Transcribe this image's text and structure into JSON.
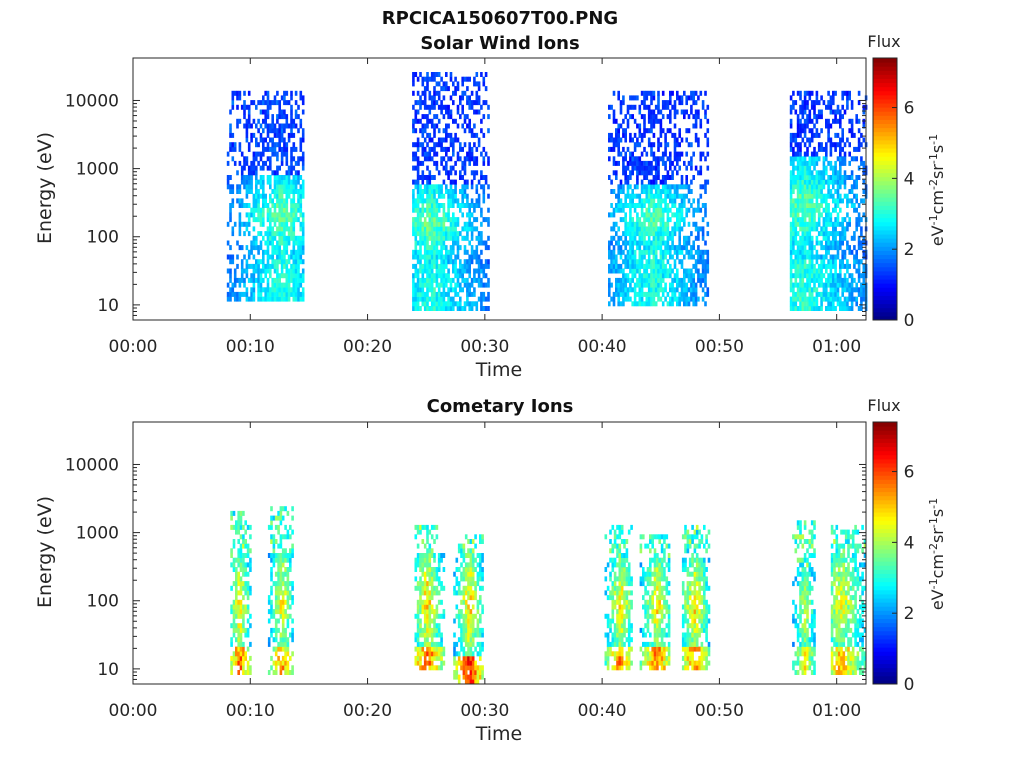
{
  "figure": {
    "title": "RPCICA150607T00.PNG"
  },
  "chart_data": [
    {
      "type": "heatmap",
      "title": "Solar Wind Ions",
      "xlabel": "Time",
      "ylabel": "Energy (eV)",
      "x_tick_labels": [
        "00:00",
        "00:10",
        "00:20",
        "00:30",
        "00:40",
        "00:50",
        "01:00"
      ],
      "x_range_minutes": [
        0,
        62.5
      ],
      "y_tick_labels": [
        "10",
        "100",
        "1000",
        "10000"
      ],
      "y_scale": "log",
      "y_range": [
        6,
        42000
      ],
      "colorbar": {
        "label": "Flux",
        "unit_label": "eV-1cm-2sr-1s-1",
        "tick_labels": [
          "0",
          "2",
          "4",
          "6"
        ],
        "range": [
          0,
          7.4
        ],
        "colormap": "jet"
      },
      "bursts": [
        {
          "t_start_min": 8.0,
          "t_end_min": 14.5,
          "peak_min": 12.6,
          "e_low": 12,
          "e_high": 14000,
          "core_low": 50,
          "core_high": 800,
          "core_flux": 3.6,
          "low_energy_flux": 3.0,
          "high_energy_flux": 1.4
        },
        {
          "t_start_min": 23.8,
          "t_end_min": 30.2,
          "peak_min": 25.3,
          "e_low": 8,
          "e_high": 28000,
          "core_low": 40,
          "core_high": 600,
          "core_flux": 3.6,
          "low_energy_flux": 3.0,
          "high_energy_flux": 1.3
        },
        {
          "t_start_min": 40.5,
          "t_end_min": 49.0,
          "peak_min": 44.2,
          "e_low": 9,
          "e_high": 13000,
          "core_low": 60,
          "core_high": 600,
          "core_flux": 3.5,
          "low_energy_flux": 3.0,
          "high_energy_flux": 1.3
        },
        {
          "t_start_min": 56.0,
          "t_end_min": 62.5,
          "peak_min": 57.0,
          "e_low": 8,
          "e_high": 15000,
          "core_low": 50,
          "core_high": 1500,
          "core_flux": 3.5,
          "low_energy_flux": 3.1,
          "high_energy_flux": 1.3
        }
      ]
    },
    {
      "type": "heatmap",
      "title": "Cometary Ions",
      "xlabel": "Time",
      "ylabel": "Energy (eV)",
      "x_tick_labels": [
        "00:00",
        "00:10",
        "00:20",
        "00:30",
        "00:40",
        "00:50",
        "01:00"
      ],
      "x_range_minutes": [
        0,
        62.5
      ],
      "y_tick_labels": [
        "10",
        "100",
        "1000",
        "10000"
      ],
      "y_scale": "log",
      "y_range": [
        6,
        42000
      ],
      "colorbar": {
        "label": "Flux",
        "unit_label": "eV-1cm-2sr-1s-1",
        "tick_labels": [
          "0",
          "2",
          "4",
          "6"
        ],
        "range": [
          0,
          7.4
        ],
        "colormap": "jet"
      },
      "bursts": [
        {
          "t_start_min": 8.3,
          "t_end_min": 10.0,
          "peak_min": 9.0,
          "e_low": 8,
          "e_high": 2000,
          "core_low": 20,
          "core_high": 400,
          "core_flux": 5.0,
          "low_energy_flux": 5.6,
          "high_energy_flux": 3.2
        },
        {
          "t_start_min": 11.5,
          "t_end_min": 13.5,
          "peak_min": 12.6,
          "e_low": 8,
          "e_high": 2500,
          "core_low": 20,
          "core_high": 500,
          "core_flux": 4.8,
          "low_energy_flux": 5.3,
          "high_energy_flux": 3.2
        },
        {
          "t_start_min": 24.0,
          "t_end_min": 26.5,
          "peak_min": 25.0,
          "e_low": 10,
          "e_high": 1200,
          "core_low": 20,
          "core_high": 500,
          "core_flux": 5.0,
          "low_energy_flux": 5.8,
          "high_energy_flux": 3.2
        },
        {
          "t_start_min": 27.3,
          "t_end_min": 29.8,
          "peak_min": 28.6,
          "e_low": 6,
          "e_high": 1000,
          "core_low": 15,
          "core_high": 500,
          "core_flux": 5.0,
          "low_energy_flux": 6.3,
          "high_energy_flux": 3.2
        },
        {
          "t_start_min": 40.2,
          "t_end_min": 42.5,
          "peak_min": 41.5,
          "e_low": 10,
          "e_high": 1200,
          "core_low": 20,
          "core_high": 400,
          "core_flux": 4.9,
          "low_energy_flux": 5.6,
          "high_energy_flux": 3.2
        },
        {
          "t_start_min": 43.2,
          "t_end_min": 45.8,
          "peak_min": 44.6,
          "e_low": 10,
          "e_high": 1000,
          "core_low": 20,
          "core_high": 400,
          "core_flux": 4.9,
          "low_energy_flux": 5.6,
          "high_energy_flux": 3.2
        },
        {
          "t_start_min": 46.8,
          "t_end_min": 49.2,
          "peak_min": 47.8,
          "e_low": 10,
          "e_high": 1200,
          "core_low": 20,
          "core_high": 400,
          "core_flux": 4.9,
          "low_energy_flux": 5.6,
          "high_energy_flux": 3.2
        },
        {
          "t_start_min": 56.2,
          "t_end_min": 58.2,
          "peak_min": 57.2,
          "e_low": 8,
          "e_high": 1500,
          "core_low": 20,
          "core_high": 300,
          "core_flux": 4.4,
          "low_energy_flux": 4.6,
          "high_energy_flux": 3.2
        },
        {
          "t_start_min": 59.5,
          "t_end_min": 62.5,
          "peak_min": 60.3,
          "e_low": 8,
          "e_high": 1200,
          "core_low": 20,
          "core_high": 500,
          "core_flux": 4.6,
          "low_energy_flux": 5.0,
          "high_energy_flux": 3.2
        }
      ]
    }
  ]
}
